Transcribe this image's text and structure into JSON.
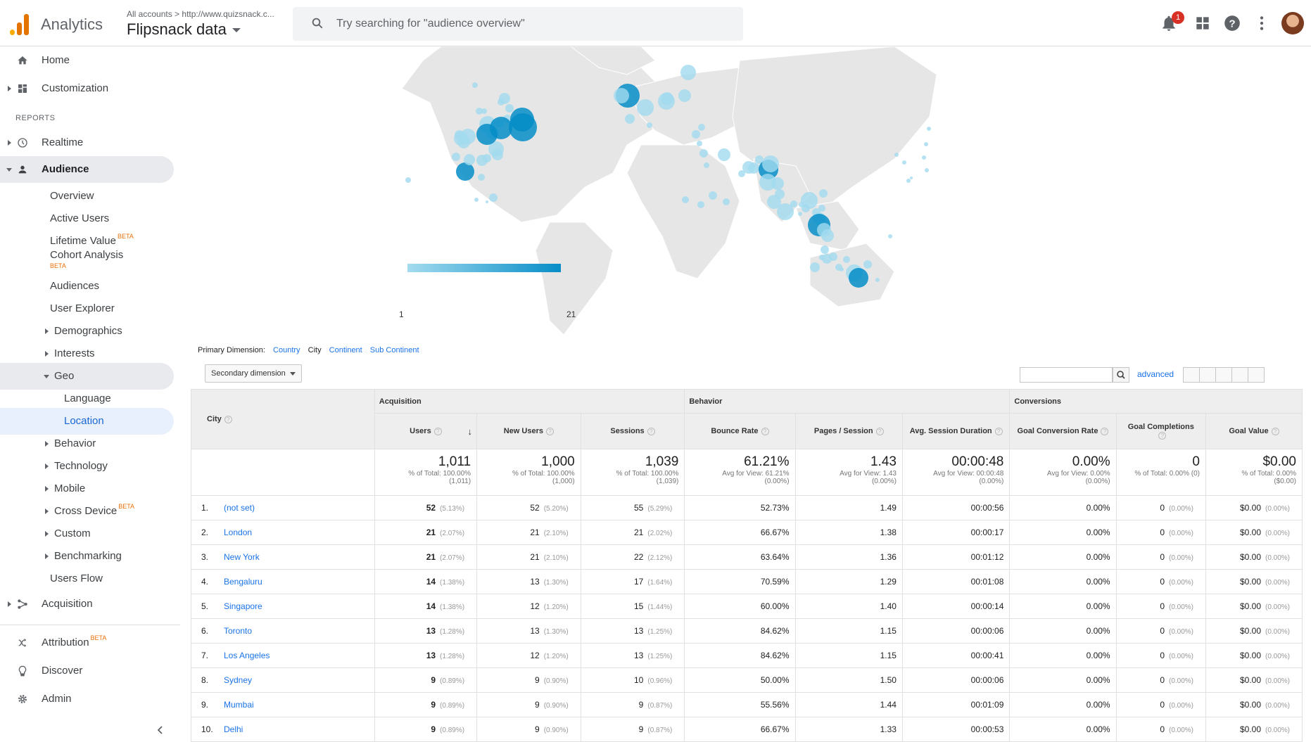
{
  "header": {
    "app_name": "Analytics",
    "breadcrumb_all": "All accounts",
    "breadcrumb_sep": ">",
    "breadcrumb_url": "http://www.quizsnack.c...",
    "account_name": "Flipsnack data",
    "search_placeholder": "Try searching for \"audience overview\"",
    "notification_count": "1"
  },
  "sidebar": {
    "home": "Home",
    "customization": "Customization",
    "reports_label": "REPORTS",
    "realtime": "Realtime",
    "audience": "Audience",
    "overview": "Overview",
    "active_users": "Active Users",
    "lifetime_value": "Lifetime Value",
    "cohort_analysis": "Cohort Analysis",
    "audiences": "Audiences",
    "user_explorer": "User Explorer",
    "demographics": "Demographics",
    "interests": "Interests",
    "geo": "Geo",
    "language": "Language",
    "location": "Location",
    "behavior": "Behavior",
    "technology": "Technology",
    "mobile": "Mobile",
    "cross_device": "Cross Device",
    "custom": "Custom",
    "benchmarking": "Benchmarking",
    "users_flow": "Users Flow",
    "acquisition": "Acquisition",
    "attribution": "Attribution",
    "discover": "Discover",
    "admin": "Admin",
    "beta": "BETA"
  },
  "map": {
    "legend_min": "1",
    "legend_max": "21",
    "colors": {
      "low": "#a3dbef",
      "high": "#058dc7",
      "land": "#e8e8e8"
    }
  },
  "dimensions": {
    "label": "Primary Dimension:",
    "country": "Country",
    "city": "City",
    "continent": "Continent",
    "sub_continent": "Sub Continent",
    "secondary": "Secondary dimension",
    "advanced": "advanced"
  },
  "table": {
    "groups": {
      "acquisition": "Acquisition",
      "behavior": "Behavior",
      "conversions": "Conversions"
    },
    "columns": {
      "city": "City",
      "users": "Users",
      "new_users": "New Users",
      "sessions": "Sessions",
      "bounce_rate": "Bounce Rate",
      "pages_session": "Pages / Session",
      "avg_session": "Avg. Session Duration",
      "goal_conv": "Goal Conversion Rate",
      "goal_comp": "Goal Completions",
      "goal_value": "Goal Value"
    },
    "totals": {
      "users": "1,011",
      "users_sub1": "% of Total: 100.00%",
      "users_sub2": "(1,011)",
      "new_users": "1,000",
      "new_users_sub1": "% of Total: 100.00%",
      "new_users_sub2": "(1,000)",
      "sessions": "1,039",
      "sessions_sub1": "% of Total: 100.00%",
      "sessions_sub2": "(1,039)",
      "bounce": "61.21%",
      "bounce_sub1": "Avg for View: 61.21%",
      "bounce_sub2": "(0.00%)",
      "pages": "1.43",
      "pages_sub1": "Avg for View: 1.43",
      "pages_sub2": "(0.00%)",
      "duration": "00:00:48",
      "duration_sub1": "Avg for View: 00:00:48",
      "duration_sub2": "(0.00%)",
      "conv": "0.00%",
      "conv_sub1": "Avg for View: 0.00%",
      "conv_sub2": "(0.00%)",
      "comp": "0",
      "comp_sub1": "% of Total: 0.00% (0)",
      "value": "$0.00",
      "value_sub1": "% of Total: 0.00%",
      "value_sub2": "($0.00)"
    },
    "rows": [
      {
        "idx": "1.",
        "city": "(not set)",
        "users": "52",
        "users_pct": "(5.13%)",
        "new": "52",
        "new_pct": "(5.20%)",
        "sessions": "55",
        "sessions_pct": "(5.29%)",
        "bounce": "52.73%",
        "pages": "1.49",
        "dur": "00:00:56",
        "conv": "0.00%",
        "comp": "0",
        "comp_pct": "(0.00%)",
        "val": "$0.00",
        "val_pct": "(0.00%)"
      },
      {
        "idx": "2.",
        "city": "London",
        "users": "21",
        "users_pct": "(2.07%)",
        "new": "21",
        "new_pct": "(2.10%)",
        "sessions": "21",
        "sessions_pct": "(2.02%)",
        "bounce": "66.67%",
        "pages": "1.38",
        "dur": "00:00:17",
        "conv": "0.00%",
        "comp": "0",
        "comp_pct": "(0.00%)",
        "val": "$0.00",
        "val_pct": "(0.00%)"
      },
      {
        "idx": "3.",
        "city": "New York",
        "users": "21",
        "users_pct": "(2.07%)",
        "new": "21",
        "new_pct": "(2.10%)",
        "sessions": "22",
        "sessions_pct": "(2.12%)",
        "bounce": "63.64%",
        "pages": "1.36",
        "dur": "00:01:12",
        "conv": "0.00%",
        "comp": "0",
        "comp_pct": "(0.00%)",
        "val": "$0.00",
        "val_pct": "(0.00%)"
      },
      {
        "idx": "4.",
        "city": "Bengaluru",
        "users": "14",
        "users_pct": "(1.38%)",
        "new": "13",
        "new_pct": "(1.30%)",
        "sessions": "17",
        "sessions_pct": "(1.64%)",
        "bounce": "70.59%",
        "pages": "1.29",
        "dur": "00:01:08",
        "conv": "0.00%",
        "comp": "0",
        "comp_pct": "(0.00%)",
        "val": "$0.00",
        "val_pct": "(0.00%)"
      },
      {
        "idx": "5.",
        "city": "Singapore",
        "users": "14",
        "users_pct": "(1.38%)",
        "new": "12",
        "new_pct": "(1.20%)",
        "sessions": "15",
        "sessions_pct": "(1.44%)",
        "bounce": "60.00%",
        "pages": "1.40",
        "dur": "00:00:14",
        "conv": "0.00%",
        "comp": "0",
        "comp_pct": "(0.00%)",
        "val": "$0.00",
        "val_pct": "(0.00%)"
      },
      {
        "idx": "6.",
        "city": "Toronto",
        "users": "13",
        "users_pct": "(1.28%)",
        "new": "13",
        "new_pct": "(1.30%)",
        "sessions": "13",
        "sessions_pct": "(1.25%)",
        "bounce": "84.62%",
        "pages": "1.15",
        "dur": "00:00:06",
        "conv": "0.00%",
        "comp": "0",
        "comp_pct": "(0.00%)",
        "val": "$0.00",
        "val_pct": "(0.00%)"
      },
      {
        "idx": "7.",
        "city": "Los Angeles",
        "users": "13",
        "users_pct": "(1.28%)",
        "new": "12",
        "new_pct": "(1.20%)",
        "sessions": "13",
        "sessions_pct": "(1.25%)",
        "bounce": "84.62%",
        "pages": "1.15",
        "dur": "00:00:41",
        "conv": "0.00%",
        "comp": "0",
        "comp_pct": "(0.00%)",
        "val": "$0.00",
        "val_pct": "(0.00%)"
      },
      {
        "idx": "8.",
        "city": "Sydney",
        "users": "9",
        "users_pct": "(0.89%)",
        "new": "9",
        "new_pct": "(0.90%)",
        "sessions": "10",
        "sessions_pct": "(0.96%)",
        "bounce": "50.00%",
        "pages": "1.50",
        "dur": "00:00:06",
        "conv": "0.00%",
        "comp": "0",
        "comp_pct": "(0.00%)",
        "val": "$0.00",
        "val_pct": "(0.00%)"
      },
      {
        "idx": "9.",
        "city": "Mumbai",
        "users": "9",
        "users_pct": "(0.89%)",
        "new": "9",
        "new_pct": "(0.90%)",
        "sessions": "9",
        "sessions_pct": "(0.87%)",
        "bounce": "55.56%",
        "pages": "1.44",
        "dur": "00:01:09",
        "conv": "0.00%",
        "comp": "0",
        "comp_pct": "(0.00%)",
        "val": "$0.00",
        "val_pct": "(0.00%)"
      },
      {
        "idx": "10.",
        "city": "Delhi",
        "users": "9",
        "users_pct": "(0.89%)",
        "new": "9",
        "new_pct": "(0.90%)",
        "sessions": "9",
        "sessions_pct": "(0.87%)",
        "bounce": "66.67%",
        "pages": "1.33",
        "dur": "00:00:53",
        "conv": "0.00%",
        "comp": "0",
        "comp_pct": "(0.00%)",
        "val": "$0.00",
        "val_pct": "(0.00%)"
      }
    ]
  }
}
